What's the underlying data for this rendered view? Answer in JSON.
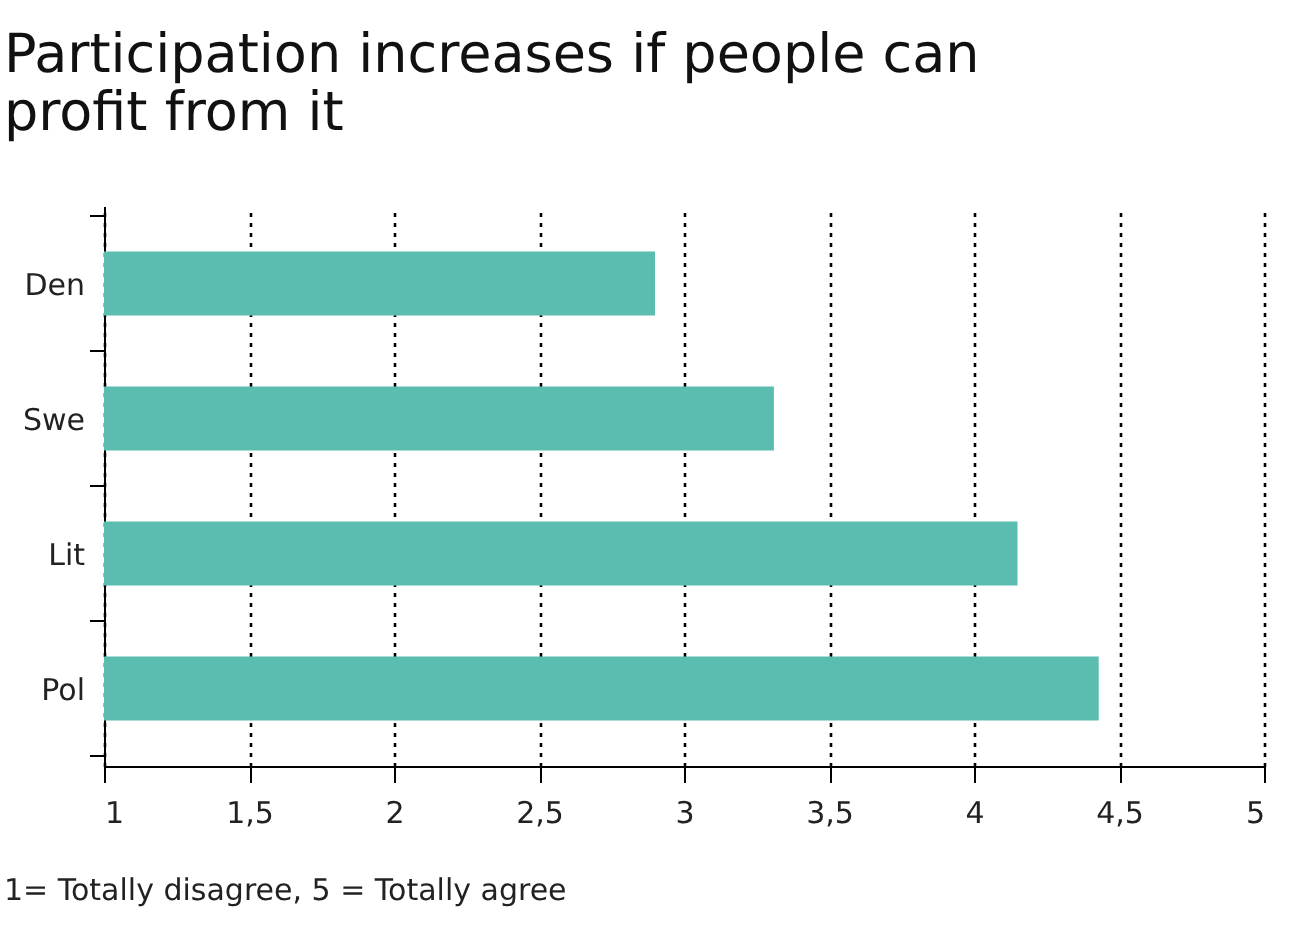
{
  "chart_data": {
    "type": "bar",
    "orientation": "horizontal",
    "title": "Participation increases if people can profit from it",
    "categories": [
      "Den",
      "Swe",
      "Lit",
      "Pol"
    ],
    "values": [
      2.9,
      3.31,
      4.15,
      4.43
    ],
    "color": "#5bbcb0",
    "xlim": [
      1,
      5
    ],
    "xticks": [
      1,
      {
        "value": 1.5,
        "label": "1,5"
      },
      2,
      {
        "value": 2.5,
        "label": "2,5"
      },
      3,
      {
        "value": 3.5,
        "label": "3,5"
      },
      4,
      {
        "value": 4.5,
        "label": "4,5"
      },
      5
    ],
    "grid": "x",
    "annotations": [
      "1= Totally disagree, 5 = Totally agree"
    ]
  }
}
